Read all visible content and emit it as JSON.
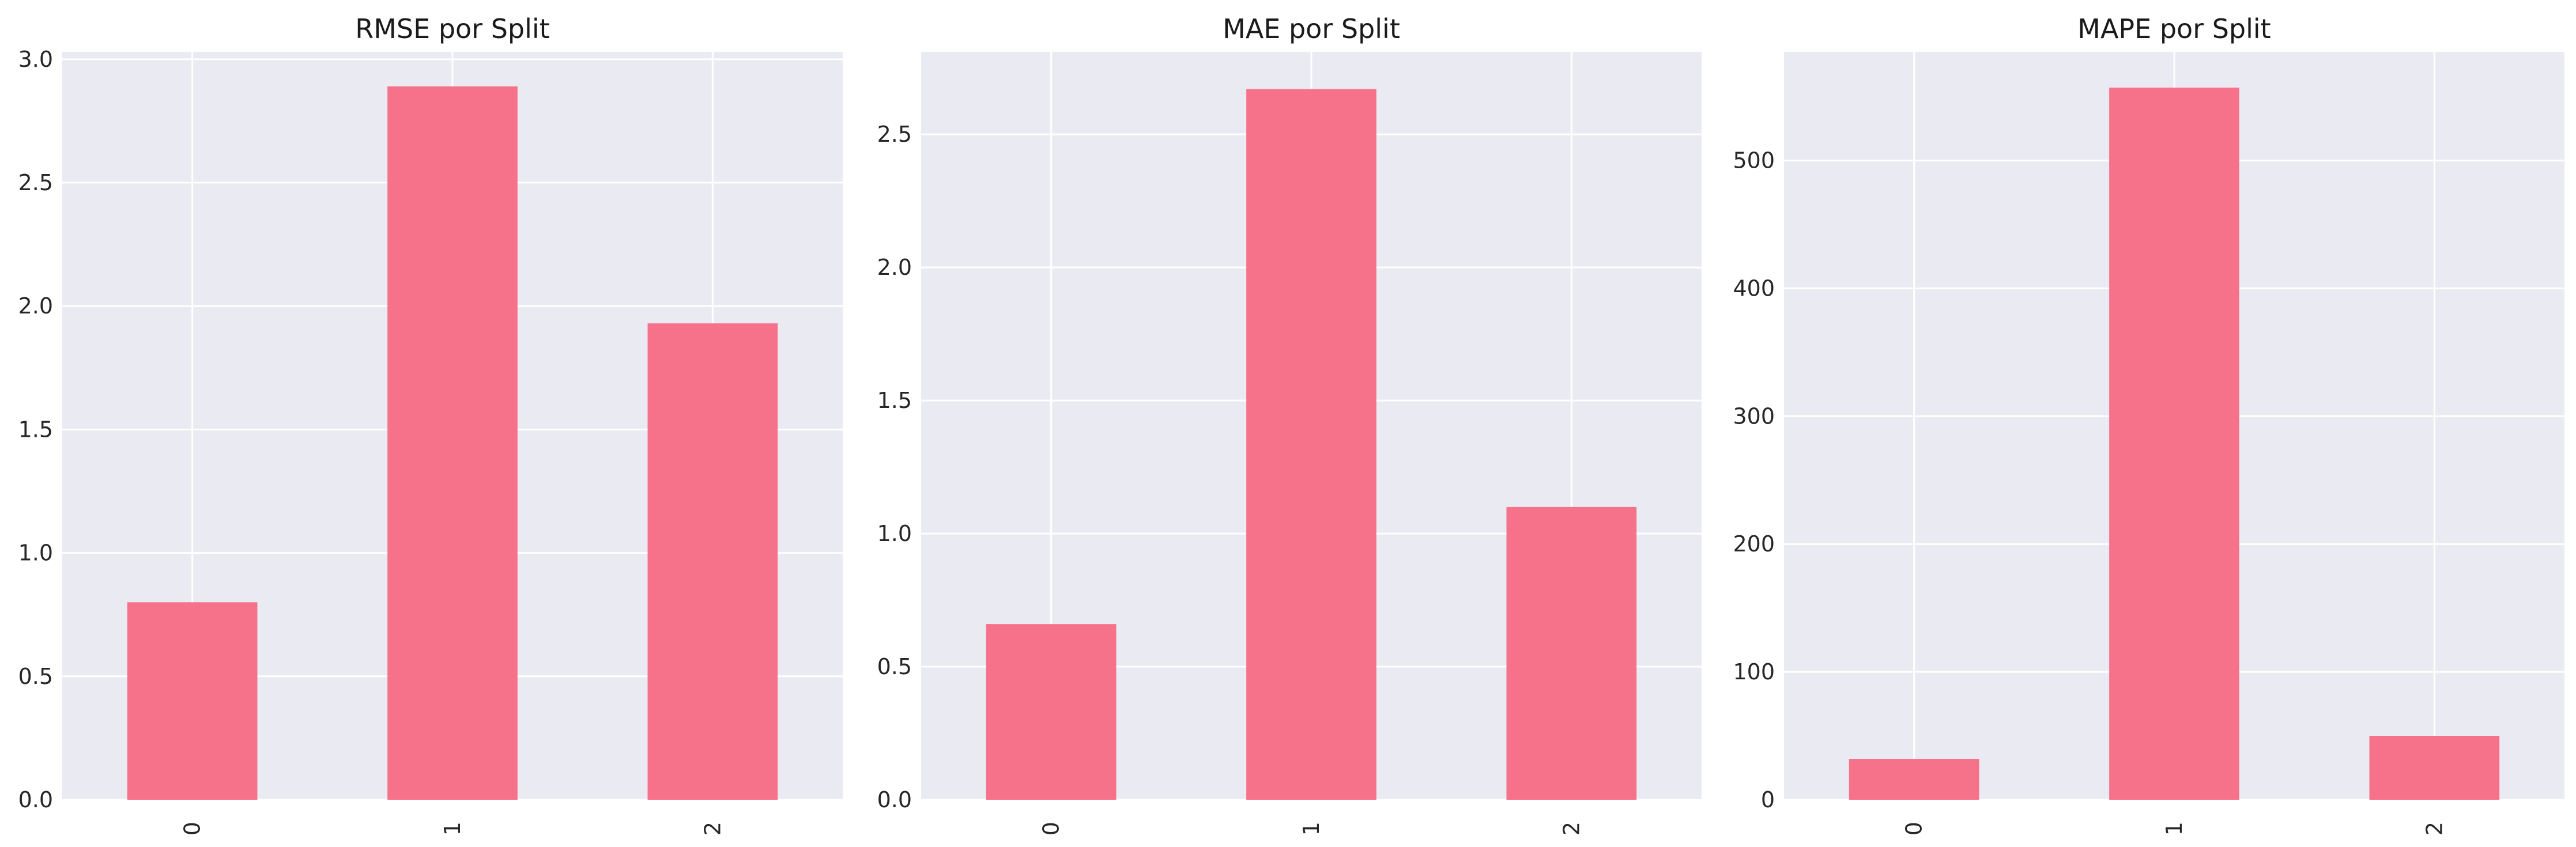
{
  "chart_data": [
    {
      "type": "bar",
      "title": "RMSE por Split",
      "xlabel": "",
      "ylabel": "",
      "categories": [
        "0",
        "1",
        "2"
      ],
      "values": [
        0.8,
        2.89,
        1.93
      ],
      "ylim": [
        0,
        3.03
      ],
      "yticks": [
        "0.0",
        "0.5",
        "1.0",
        "1.5",
        "2.0",
        "2.5",
        "3.0"
      ],
      "ytick_values": [
        0,
        0.5,
        1.0,
        1.5,
        2.0,
        2.5,
        3.0
      ],
      "grid": true
    },
    {
      "type": "bar",
      "title": "MAE por Split",
      "xlabel": "",
      "ylabel": "",
      "categories": [
        "0",
        "1",
        "2"
      ],
      "values": [
        0.66,
        2.67,
        1.1
      ],
      "ylim": [
        0,
        2.81
      ],
      "yticks": [
        "0.0",
        "0.5",
        "1.0",
        "1.5",
        "2.0",
        "2.5"
      ],
      "ytick_values": [
        0,
        0.5,
        1.0,
        1.5,
        2.0,
        2.5
      ],
      "grid": true
    },
    {
      "type": "bar",
      "title": "MAPE por Split",
      "xlabel": "",
      "ylabel": "",
      "categories": [
        "0",
        "1",
        "2"
      ],
      "values": [
        32,
        557,
        50
      ],
      "ylim": [
        0,
        585
      ],
      "yticks": [
        "0",
        "100",
        "200",
        "300",
        "400",
        "500"
      ],
      "ytick_values": [
        0,
        100,
        200,
        300,
        400,
        500
      ],
      "grid": true
    }
  ],
  "colors": {
    "bar": "#f5728a",
    "plot_bg": "#eaeaf2",
    "grid": "#ffffff"
  }
}
